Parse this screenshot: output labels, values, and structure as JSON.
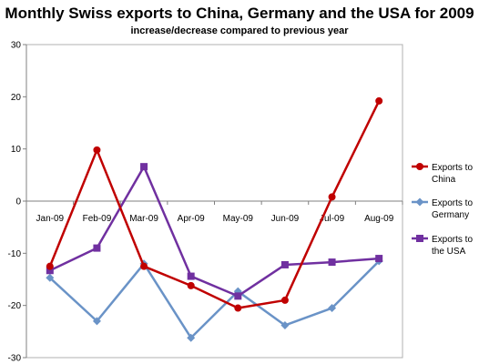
{
  "chart_data": {
    "type": "line",
    "title": "Monthly Swiss exports to China, Germany and the USA for 2009",
    "subtitle": "increase/decrease compared to previous year",
    "categories": [
      "Jan-09",
      "Feb-09",
      "Mar-09",
      "Apr-09",
      "May-09",
      "Jun-09",
      "Jul-09",
      "Aug-09"
    ],
    "ylim": [
      -30,
      30
    ],
    "yticks": [
      "30",
      "20",
      "10",
      "0",
      "-10",
      "-20",
      "-30"
    ],
    "grid": false,
    "legend_position": "right",
    "series": [
      {
        "name": "Exports to China",
        "legend_lines": [
          "Exports to",
          "China"
        ],
        "color": "#c00000",
        "marker": "circle",
        "values": [
          -12.5,
          9.8,
          -12.5,
          -16.2,
          -20.5,
          -19.0,
          0.8,
          19.2
        ]
      },
      {
        "name": "Exports to Germany",
        "legend_lines": [
          "Exports to",
          "Germany"
        ],
        "color": "#6a93c7",
        "marker": "diamond",
        "values": [
          -14.7,
          -23.0,
          -12.0,
          -26.2,
          -17.3,
          -23.8,
          -20.5,
          -11.5
        ]
      },
      {
        "name": "Exports to the USA",
        "legend_lines": [
          "Exports to",
          "the USA"
        ],
        "color": "#7030a0",
        "marker": "square",
        "values": [
          -13.3,
          -9.0,
          6.6,
          -14.4,
          -18.2,
          -12.2,
          -11.7,
          -11.0
        ]
      }
    ]
  }
}
